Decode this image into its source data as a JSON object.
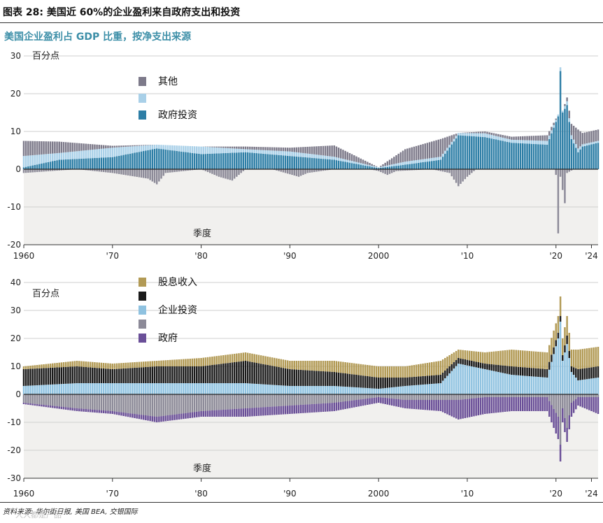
{
  "header": {
    "figure_title": "图表 28: 美国近 60%的企业盈利来自政府支出和投资",
    "subtitle": "美国企业盈利占 GDP 比重，按净支出来源"
  },
  "footer": {
    "source": "资料来源: 华尔街日报, 美国 BEA, 交银国际",
    "watermark": "人人都是产品"
  },
  "colors": {
    "other": "#7d7a8a",
    "light_blue": "#a9d0e8",
    "gov_invest": "#2d7ea6",
    "dividend": "#b29a55",
    "black": "#1b1b1b",
    "business_invest": "#8fc2e0",
    "gray": "#8c8a98",
    "government": "#6a4f98",
    "shade": "#f1f0ee"
  },
  "chart_data": [
    {
      "type": "bar",
      "stacked": true,
      "unit_label": "百分点",
      "period_label": "季度",
      "ylim": [
        -20,
        30
      ],
      "yticks": [
        30,
        20,
        10,
        0,
        -10,
        -20
      ],
      "x_range": [
        1960,
        2024.75
      ],
      "xticks": [
        {
          "year": 1960,
          "label": "1960"
        },
        {
          "year": 1970,
          "label": "'70"
        },
        {
          "year": 1980,
          "label": "'80"
        },
        {
          "year": 1990,
          "label": "'90"
        },
        {
          "year": 2000,
          "label": "2000"
        },
        {
          "year": 2010,
          "label": "'10"
        },
        {
          "year": 2020,
          "label": "'20"
        },
        {
          "year": 2024,
          "label": "'24"
        }
      ],
      "legend": [
        {
          "label": "其他",
          "color": "#7d7a8a"
        },
        {
          "label": "",
          "color": "#a9d0e8"
        },
        {
          "label": "政府投资",
          "color": "#2d7ea6"
        }
      ],
      "series_keypoints": {
        "政府投资": [
          [
            1960,
            0.5
          ],
          [
            1964,
            2.5
          ],
          [
            1970,
            3.2
          ],
          [
            1975,
            5.5
          ],
          [
            1980,
            4
          ],
          [
            1985,
            4.5
          ],
          [
            1990,
            3.5
          ],
          [
            1995,
            2.5
          ],
          [
            2000,
            0.3
          ],
          [
            2003,
            1.2
          ],
          [
            2007,
            2.5
          ],
          [
            2009,
            9
          ],
          [
            2012,
            8.5
          ],
          [
            2015,
            7
          ],
          [
            2019,
            6.5
          ],
          [
            2020.25,
            14
          ],
          [
            2020.5,
            26
          ],
          [
            2020.75,
            15
          ],
          [
            2021.25,
            17
          ],
          [
            2021.75,
            8
          ],
          [
            2022.5,
            4.5
          ],
          [
            2023,
            6
          ],
          [
            2024.75,
            7
          ]
        ],
        "浅蓝": [
          [
            1960,
            3
          ],
          [
            1964,
            1.8
          ],
          [
            1970,
            2.5
          ],
          [
            1975,
            1
          ],
          [
            1980,
            2
          ],
          [
            1985,
            0.8
          ],
          [
            1990,
            1.2
          ],
          [
            1995,
            0.8
          ],
          [
            2000,
            0.2
          ],
          [
            2003,
            0.8
          ],
          [
            2007,
            0.8
          ],
          [
            2009,
            0.6
          ],
          [
            2012,
            1
          ],
          [
            2015,
            0.8
          ],
          [
            2019,
            1
          ],
          [
            2020.25,
            0.5
          ],
          [
            2020.5,
            1
          ],
          [
            2020.75,
            0.5
          ],
          [
            2021.25,
            1
          ],
          [
            2021.75,
            1
          ],
          [
            2022.5,
            1
          ],
          [
            2023,
            0.6
          ],
          [
            2024.75,
            0.5
          ]
        ],
        "其他": [
          [
            1960,
            4
          ],
          [
            1964,
            3
          ],
          [
            1970,
            0.5
          ],
          [
            1975,
            0
          ],
          [
            1980,
            0
          ],
          [
            1985,
            0.7
          ],
          [
            1990,
            1
          ],
          [
            1995,
            3
          ],
          [
            2000,
            0
          ],
          [
            2003,
            3.3
          ],
          [
            2007,
            4.7
          ],
          [
            2009,
            0
          ],
          [
            2012,
            0.5
          ],
          [
            2015,
            0.8
          ],
          [
            2019,
            1.5
          ],
          [
            2020.25,
            0
          ],
          [
            2020.5,
            0
          ],
          [
            2020.75,
            0
          ],
          [
            2021.25,
            1
          ],
          [
            2021.75,
            3
          ],
          [
            2022.5,
            5
          ],
          [
            2023,
            3
          ],
          [
            2024.75,
            3
          ]
        ],
        "负向": [
          [
            1960,
            -1
          ],
          [
            1966,
            0
          ],
          [
            1970,
            -1
          ],
          [
            1974,
            -2.5
          ],
          [
            1975,
            -4
          ],
          [
            1976,
            -1
          ],
          [
            1980,
            0
          ],
          [
            1982,
            -2
          ],
          [
            1983.5,
            -3
          ],
          [
            1985,
            0
          ],
          [
            1988,
            0
          ],
          [
            1991,
            -2
          ],
          [
            1992,
            -1
          ],
          [
            1995,
            0
          ],
          [
            1999,
            0
          ],
          [
            2000,
            -0.5
          ],
          [
            2001,
            -1.5
          ],
          [
            2002,
            -0.5
          ],
          [
            2006,
            0
          ],
          [
            2008,
            -1
          ],
          [
            2009,
            -4.5
          ],
          [
            2010,
            -2
          ],
          [
            2011,
            0
          ],
          [
            2019.9,
            0
          ],
          [
            2020.1,
            -3
          ],
          [
            2020.25,
            -17
          ],
          [
            2020.5,
            -2
          ],
          [
            2021,
            -9
          ],
          [
            2021.25,
            -1
          ],
          [
            2022,
            0
          ],
          [
            2024.75,
            0
          ]
        ]
      }
    },
    {
      "type": "bar",
      "stacked": true,
      "unit_label": "百分点",
      "period_label": "季度",
      "ylim": [
        -30,
        40
      ],
      "yticks": [
        40,
        30,
        20,
        10,
        0,
        -10,
        -20,
        -30
      ],
      "x_range": [
        1960,
        2024.75
      ],
      "xticks": [
        {
          "year": 1960,
          "label": "1960"
        },
        {
          "year": 1970,
          "label": "'70"
        },
        {
          "year": 1980,
          "label": "'80"
        },
        {
          "year": 1990,
          "label": "'90"
        },
        {
          "year": 2000,
          "label": "2000"
        },
        {
          "year": 2010,
          "label": "'10"
        },
        {
          "year": 2020,
          "label": "'20"
        },
        {
          "year": 2024,
          "label": "'24"
        }
      ],
      "legend": [
        {
          "label": "股息收入",
          "color": "#b29a55"
        },
        {
          "label": "",
          "color": "#1b1b1b"
        },
        {
          "label": "企业投资",
          "color": "#8fc2e0"
        },
        {
          "label": "",
          "color": "#8c8a98"
        },
        {
          "label": "政府",
          "color": "#6a4f98"
        }
      ],
      "series_keypoints": {
        "企业投资": [
          [
            1960,
            3
          ],
          [
            1966,
            4
          ],
          [
            1970,
            4
          ],
          [
            1975,
            4
          ],
          [
            1980,
            4
          ],
          [
            1985,
            4
          ],
          [
            1990,
            3
          ],
          [
            1995,
            3
          ],
          [
            2000,
            2
          ],
          [
            2003,
            3
          ],
          [
            2007,
            4
          ],
          [
            2009,
            11
          ],
          [
            2012,
            9
          ],
          [
            2015,
            7
          ],
          [
            2019,
            6
          ],
          [
            2020.25,
            20
          ],
          [
            2020.5,
            26
          ],
          [
            2020.75,
            12
          ],
          [
            2021.25,
            18
          ],
          [
            2021.75,
            8
          ],
          [
            2022.5,
            5
          ],
          [
            2024.75,
            6
          ]
        ],
        "黑色": [
          [
            1960,
            6
          ],
          [
            1966,
            6
          ],
          [
            1970,
            5
          ],
          [
            1975,
            6
          ],
          [
            1980,
            6
          ],
          [
            1985,
            8
          ],
          [
            1990,
            6
          ],
          [
            1995,
            5
          ],
          [
            2000,
            4
          ],
          [
            2003,
            3
          ],
          [
            2007,
            3
          ],
          [
            2009,
            2
          ],
          [
            2012,
            2
          ],
          [
            2015,
            3
          ],
          [
            2019,
            3
          ],
          [
            2020.25,
            2
          ],
          [
            2020.5,
            2
          ],
          [
            2020.75,
            2
          ],
          [
            2021.25,
            3
          ],
          [
            2021.75,
            2
          ],
          [
            2022.5,
            4
          ],
          [
            2024.75,
            4
          ]
        ],
        "股息收入": [
          [
            1960,
            1
          ],
          [
            1966,
            2
          ],
          [
            1970,
            2
          ],
          [
            1975,
            2
          ],
          [
            1980,
            3
          ],
          [
            1985,
            3
          ],
          [
            1990,
            3
          ],
          [
            1995,
            4
          ],
          [
            2000,
            4
          ],
          [
            2003,
            4
          ],
          [
            2007,
            5
          ],
          [
            2009,
            3
          ],
          [
            2012,
            4
          ],
          [
            2015,
            6
          ],
          [
            2019,
            6
          ],
          [
            2020.25,
            6
          ],
          [
            2020.5,
            7
          ],
          [
            2020.75,
            6
          ],
          [
            2021.25,
            7
          ],
          [
            2021.75,
            6
          ],
          [
            2022.5,
            7
          ],
          [
            2024.75,
            7
          ]
        ],
        "灰色": [
          [
            1960,
            -3
          ],
          [
            1966,
            -5
          ],
          [
            1970,
            -6
          ],
          [
            1975,
            -8
          ],
          [
            1980,
            -6
          ],
          [
            1985,
            -5
          ],
          [
            1990,
            -4
          ],
          [
            1995,
            -3
          ],
          [
            2000,
            -1
          ],
          [
            2003,
            -2
          ],
          [
            2007,
            -2
          ],
          [
            2009,
            -2
          ],
          [
            2012,
            -1
          ],
          [
            2015,
            -1
          ],
          [
            2019,
            -1
          ],
          [
            2020.25,
            -8
          ],
          [
            2020.5,
            -18
          ],
          [
            2020.75,
            -5
          ],
          [
            2021.25,
            -12
          ],
          [
            2021.75,
            -3
          ],
          [
            2022.5,
            -1
          ],
          [
            2024.75,
            -1
          ]
        ],
        "政府": [
          [
            1960,
            -0.5
          ],
          [
            1966,
            -1
          ],
          [
            1970,
            -1
          ],
          [
            1975,
            -2
          ],
          [
            1980,
            -2
          ],
          [
            1985,
            -3
          ],
          [
            1990,
            -3
          ],
          [
            1995,
            -3
          ],
          [
            2000,
            -2
          ],
          [
            2003,
            -3
          ],
          [
            2007,
            -4
          ],
          [
            2009,
            -7
          ],
          [
            2012,
            -6
          ],
          [
            2015,
            -5
          ],
          [
            2019,
            -5
          ],
          [
            2020.25,
            -8
          ],
          [
            2020.5,
            -6
          ],
          [
            2020.75,
            -5
          ],
          [
            2021.25,
            -5
          ],
          [
            2021.75,
            -5
          ],
          [
            2022.5,
            -3
          ],
          [
            2024.75,
            -6
          ]
        ]
      }
    }
  ]
}
